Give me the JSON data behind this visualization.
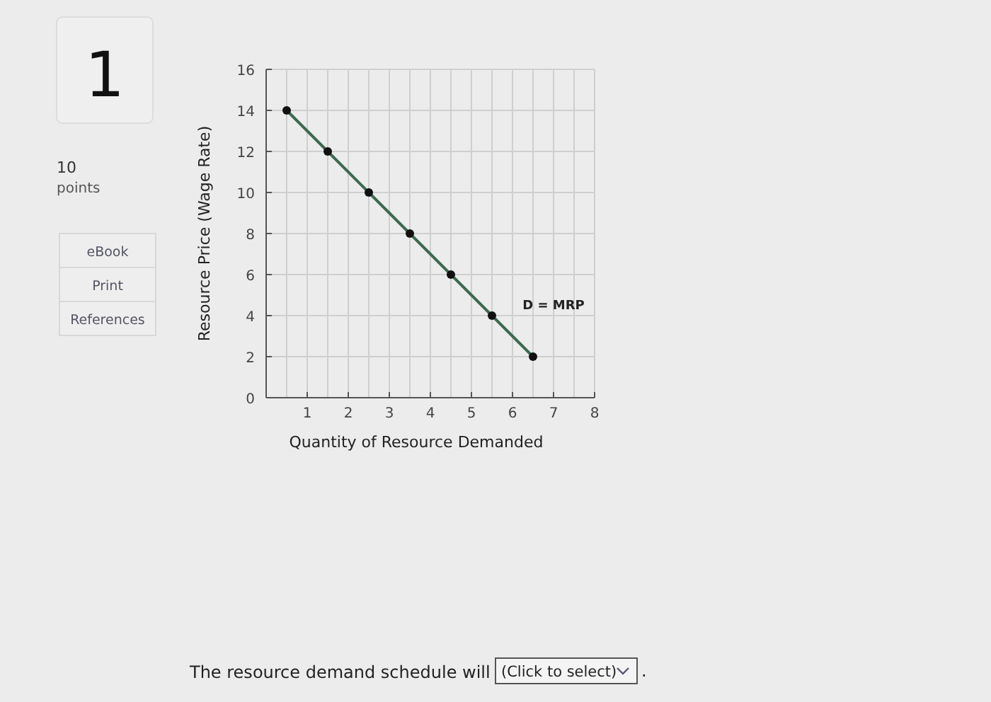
{
  "chart_data": {
    "type": "line",
    "xlabel": "Quantity of Resource Demanded",
    "ylabel": "Resource Price (Wage Rate)",
    "x": [
      0.5,
      1.5,
      2.5,
      3.5,
      4.5,
      5.5,
      6.5
    ],
    "series": [
      {
        "color": "#3d6b50",
        "values": [
          14,
          12,
          10,
          8,
          6,
          4,
          2
        ]
      }
    ],
    "xlim": [
      0,
      8
    ],
    "ylim": [
      0,
      16
    ],
    "xticks": [
      {
        "value": 0,
        "label": null
      },
      {
        "value": 0.5,
        "label": null
      },
      1,
      {
        "value": 1.5,
        "label": null
      },
      2,
      {
        "value": 2.5,
        "label": null
      },
      3,
      {
        "value": 3.5,
        "label": null
      },
      4,
      {
        "value": 4.5,
        "label": null
      },
      5,
      {
        "value": 5.5,
        "label": null
      },
      6,
      {
        "value": 6.5,
        "label": null
      },
      7,
      {
        "value": 7.5,
        "label": null
      },
      8
    ],
    "yticks": [
      0,
      2,
      4,
      6,
      8,
      10,
      12,
      14,
      16
    ],
    "grid": true,
    "marker": "circle",
    "line_style": "solid",
    "annotations": [
      "D = MRP",
      "1",
      "10",
      "points",
      "eBook",
      "Print",
      "References",
      "The resource demand schedule will",
      "(Click to select)",
      "."
    ]
  }
}
